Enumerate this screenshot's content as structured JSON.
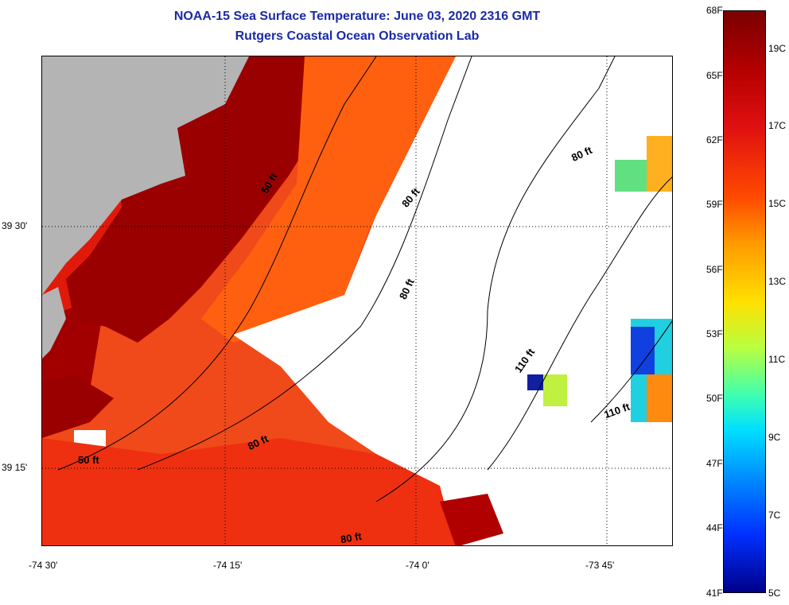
{
  "header": {
    "title": "NOAA-15 Sea Surface Temperature:  June 03, 2020 2316 GMT",
    "subtitle": "Rutgers Coastal Ocean Observation Lab"
  },
  "axes": {
    "lon_labels": [
      "-74 30'",
      "-74 15'",
      "-74 0'",
      "-73 45'"
    ],
    "lat_labels": [
      "39 30'",
      "39 15'"
    ]
  },
  "contour_labels": [
    "50 ft",
    "80 ft",
    "80 ft",
    "80 ft",
    "110 ft",
    "110 ft",
    "50 ft",
    "80 ft",
    "80 ft"
  ],
  "colorbar": {
    "fahrenheit": [
      "68F",
      "65F",
      "62F",
      "59F",
      "56F",
      "53F",
      "50F",
      "47F",
      "44F",
      "41F"
    ],
    "celsius": [
      "19C",
      "17C",
      "15C",
      "13C",
      "11C",
      "9C",
      "7C",
      "5C"
    ]
  },
  "colors": {
    "land": "#b4b4b4",
    "title": "#1a2aa8"
  }
}
